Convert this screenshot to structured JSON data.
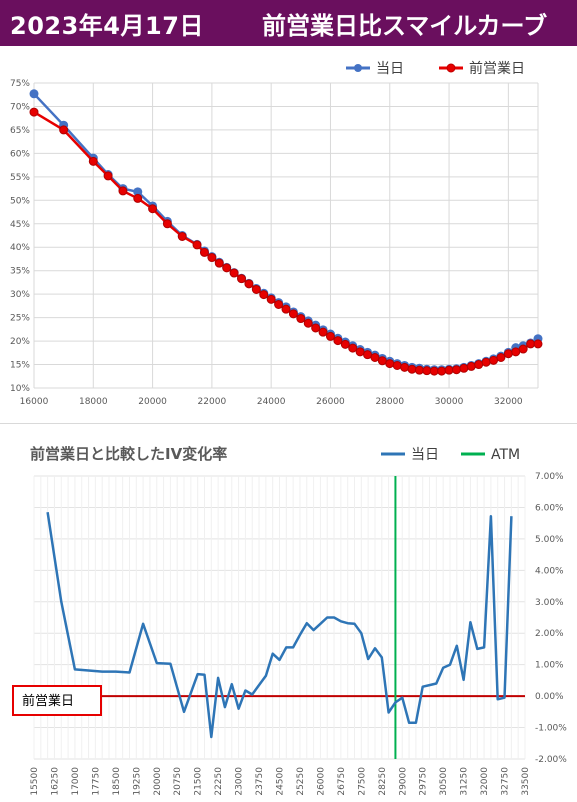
{
  "header": {
    "date": "2023年4月17日",
    "title": "前営業日比スマイルカーブ"
  },
  "chart_data": [
    {
      "type": "line",
      "title": "",
      "legend_position": "top-right",
      "grid": true,
      "xlim": [
        16000,
        33000
      ],
      "ylim": [
        0.1,
        0.75
      ],
      "x_ticks": [
        16000,
        18000,
        20000,
        22000,
        24000,
        26000,
        28000,
        30000,
        32000
      ],
      "y_ticks": [
        0.1,
        0.15,
        0.2,
        0.25,
        0.3,
        0.35,
        0.4,
        0.45,
        0.5,
        0.55,
        0.6,
        0.65,
        0.7,
        0.75
      ],
      "y_tick_labels": [
        "10%",
        "15%",
        "20%",
        "25%",
        "30%",
        "35%",
        "40%",
        "45%",
        "50%",
        "55%",
        "60%",
        "65%",
        "70%",
        "75%"
      ],
      "series": [
        {
          "name": "当日",
          "color": "#4472c4",
          "x": [
            16000,
            17000,
            18000,
            18500,
            19000,
            19500,
            20000,
            20500,
            21000,
            21500,
            21750,
            22000,
            22250,
            22500,
            22750,
            23000,
            23250,
            23500,
            23750,
            24000,
            24250,
            24500,
            24750,
            25000,
            25250,
            25500,
            25750,
            26000,
            26250,
            26500,
            26750,
            27000,
            27250,
            27500,
            27750,
            28000,
            28250,
            28500,
            28750,
            29000,
            29250,
            29500,
            29750,
            30000,
            30250,
            30500,
            30750,
            31000,
            31250,
            31500,
            31750,
            32000,
            32250,
            32500,
            32750,
            33000
          ],
          "y": [
            0.727,
            0.66,
            0.59,
            0.555,
            0.525,
            0.518,
            0.488,
            0.455,
            0.425,
            0.406,
            0.392,
            0.38,
            0.368,
            0.357,
            0.346,
            0.334,
            0.323,
            0.312,
            0.302,
            0.292,
            0.282,
            0.273,
            0.262,
            0.252,
            0.243,
            0.234,
            0.224,
            0.215,
            0.206,
            0.198,
            0.19,
            0.182,
            0.176,
            0.17,
            0.163,
            0.157,
            0.152,
            0.148,
            0.144,
            0.142,
            0.14,
            0.139,
            0.139,
            0.14,
            0.141,
            0.144,
            0.148,
            0.152,
            0.157,
            0.162,
            0.168,
            0.176,
            0.186,
            0.19,
            0.196,
            0.205
          ]
        },
        {
          "name": "前営業日",
          "color": "#e60000",
          "x": [
            16000,
            17000,
            18000,
            18500,
            19000,
            19500,
            20000,
            20500,
            21000,
            21500,
            21750,
            22000,
            22250,
            22500,
            22750,
            23000,
            23250,
            23500,
            23750,
            24000,
            24250,
            24500,
            24750,
            25000,
            25250,
            25500,
            25750,
            26000,
            26250,
            26500,
            26750,
            27000,
            27250,
            27500,
            27750,
            28000,
            28250,
            28500,
            28750,
            29000,
            29250,
            29500,
            29750,
            30000,
            30250,
            30500,
            30750,
            31000,
            31250,
            31500,
            31750,
            32000,
            32250,
            32500,
            32750,
            33000
          ],
          "y": [
            0.688,
            0.65,
            0.583,
            0.552,
            0.52,
            0.504,
            0.482,
            0.45,
            0.423,
            0.405,
            0.389,
            0.378,
            0.366,
            0.356,
            0.345,
            0.333,
            0.322,
            0.31,
            0.299,
            0.289,
            0.278,
            0.268,
            0.258,
            0.248,
            0.238,
            0.228,
            0.219,
            0.21,
            0.201,
            0.193,
            0.185,
            0.177,
            0.171,
            0.165,
            0.158,
            0.152,
            0.148,
            0.144,
            0.14,
            0.138,
            0.137,
            0.136,
            0.136,
            0.138,
            0.139,
            0.142,
            0.146,
            0.15,
            0.155,
            0.159,
            0.165,
            0.173,
            0.177,
            0.183,
            0.194,
            0.194
          ]
        }
      ]
    },
    {
      "type": "line",
      "title": "前営業日と比較したIV変化率",
      "legend_position": "top-right",
      "grid": true,
      "ylim": [
        -0.02,
        0.07
      ],
      "y_axis_side": "right",
      "y_ticks": [
        -0.02,
        -0.01,
        0,
        0.01,
        0.02,
        0.03,
        0.04,
        0.05,
        0.06,
        0.07
      ],
      "y_tick_labels": [
        "-2.00%",
        "-1.00%",
        "0.00%",
        "1.00%",
        "2.00%",
        "3.00%",
        "4.00%",
        "5.00%",
        "6.00%",
        "7.00%"
      ],
      "categories": [
        "15500",
        "15750",
        "16000",
        "16250",
        "16500",
        "16750",
        "17000",
        "17250",
        "17500",
        "17750",
        "18000",
        "18250",
        "18500",
        "18750",
        "19000",
        "19250",
        "19500",
        "19750",
        "20000",
        "20250",
        "20500",
        "20750",
        "21000",
        "21250",
        "21500",
        "21750",
        "22000",
        "22250",
        "22500",
        "22750",
        "23000",
        "23250",
        "23500",
        "23750",
        "24000",
        "24250",
        "24500",
        "24750",
        "25000",
        "25250",
        "25500",
        "25750",
        "26000",
        "26250",
        "26500",
        "26750",
        "27000",
        "27250",
        "27500",
        "27750",
        "28000",
        "28250",
        "28500",
        "28750",
        "29000",
        "29250",
        "29500",
        "29750",
        "30000",
        "30250",
        "30500",
        "30750",
        "31000",
        "31250",
        "31500",
        "31750",
        "32000",
        "32250",
        "32500",
        "32750",
        "33000",
        "33250",
        "33500"
      ],
      "x_tick_labels": [
        "15500",
        "16250",
        "17000",
        "17750",
        "18500",
        "19250",
        "20000",
        "20750",
        "21500",
        "22250",
        "23000",
        "23750",
        "24500",
        "25250",
        "26000",
        "26750",
        "27500",
        "28250",
        "29000",
        "29750",
        "30500",
        "31250",
        "32000",
        "32750",
        "33500"
      ],
      "x_tick_every": 3,
      "series": [
        {
          "name": "当日",
          "color": "#2e75b6",
          "x": [
            "16000",
            "16500",
            "17000",
            "18000",
            "18500",
            "19000",
            "19500",
            "20000",
            "20500",
            "21000",
            "21500",
            "21750",
            "22000",
            "22250",
            "22500",
            "22750",
            "23000",
            "23250",
            "23500",
            "23750",
            "24000",
            "24250",
            "24500",
            "24750",
            "25000",
            "25250",
            "25500",
            "25750",
            "26000",
            "26250",
            "26500",
            "26750",
            "27000",
            "27250",
            "27500",
            "27750",
            "28000",
            "28250",
            "28500",
            "28750",
            "29000",
            "29250",
            "29500",
            "29750",
            "30000",
            "30250",
            "30500",
            "30750",
            "31000",
            "31250",
            "31500",
            "31750",
            "32000",
            "32250",
            "32500",
            "32750",
            "33000"
          ],
          "y": [
            0.0585,
            0.03,
            0.0085,
            0.0078,
            0.0078,
            0.0075,
            0.023,
            0.0105,
            0.0103,
            -0.005,
            0.007,
            0.0068,
            -0.013,
            0.0058,
            -0.0035,
            0.0038,
            -0.004,
            0.0018,
            0.0005,
            0.0035,
            0.0065,
            0.0135,
            0.0115,
            0.0155,
            0.0155,
            0.0195,
            0.0232,
            0.021,
            0.023,
            0.025,
            0.025,
            0.0238,
            0.0232,
            0.023,
            0.02,
            0.0118,
            0.0152,
            0.0123,
            -0.0052,
            -0.002,
            -0.0005,
            -0.0085,
            -0.0085,
            0.003,
            0.0035,
            0.004,
            0.009,
            0.01,
            0.016,
            0.0052,
            0.0235,
            0.015,
            0.0155,
            0.0572,
            -0.001,
            -0.0005,
            0.0572
          ]
        }
      ],
      "atm": {
        "name": "ATM",
        "x": "28750",
        "color": "#00b050"
      },
      "reference": {
        "label": "前営業日",
        "y": 0,
        "color": "#c00000"
      }
    }
  ]
}
